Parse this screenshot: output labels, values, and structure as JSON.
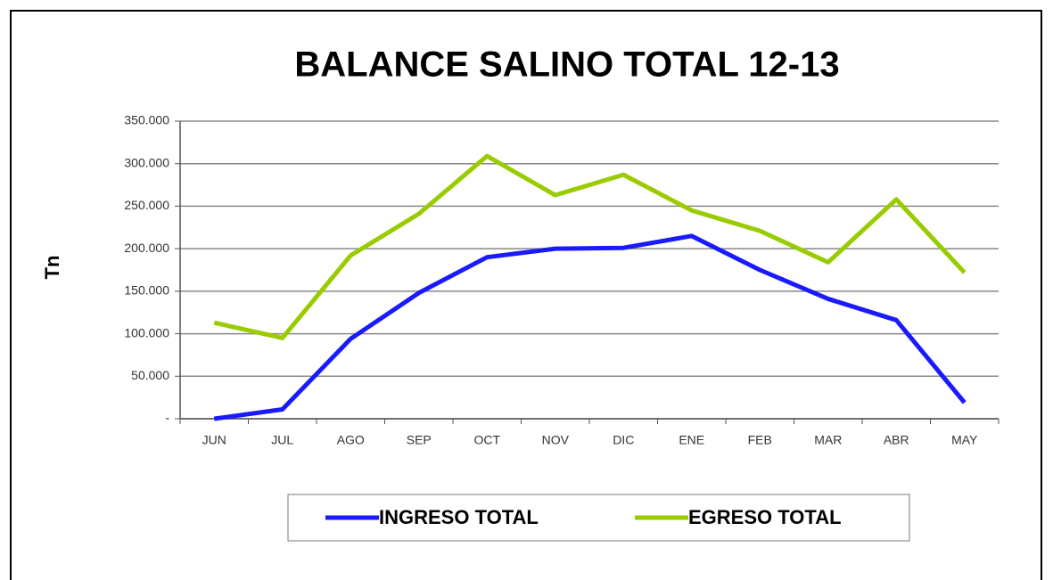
{
  "chart_data": {
    "type": "line",
    "title": "BALANCE SALINO TOTAL 12-13",
    "y_label": "Tn",
    "categories": [
      "JUN",
      "JUL",
      "AGO",
      "SEP",
      "OCT",
      "NOV",
      "DIC",
      "ENE",
      "FEB",
      "MAR",
      "ABR",
      "MAY"
    ],
    "series": [
      {
        "name": "INGRESO TOTAL",
        "color": "#1a1aff",
        "values": [
          0,
          11000,
          94000,
          148000,
          190000,
          200000,
          201000,
          215000,
          175000,
          141000,
          116000,
          19000
        ]
      },
      {
        "name": "EGRESO TOTAL",
        "color": "#99cc00",
        "values": [
          113000,
          95000,
          192000,
          241000,
          309000,
          263000,
          287000,
          245000,
          221000,
          184000,
          258000,
          172000
        ]
      }
    ],
    "ylim": [
      0,
      350000
    ],
    "yticks": [
      {
        "value": 0,
        "label": "-"
      },
      {
        "value": 50000,
        "label": "50.000"
      },
      {
        "value": 100000,
        "label": "100.000"
      },
      {
        "value": 150000,
        "label": "150.000"
      },
      {
        "value": 200000,
        "label": "200.000"
      },
      {
        "value": 250000,
        "label": "250.000"
      },
      {
        "value": 300000,
        "label": "300.000"
      },
      {
        "value": 350000,
        "label": "350.000"
      }
    ],
    "grid": true,
    "legend": "bottom"
  }
}
